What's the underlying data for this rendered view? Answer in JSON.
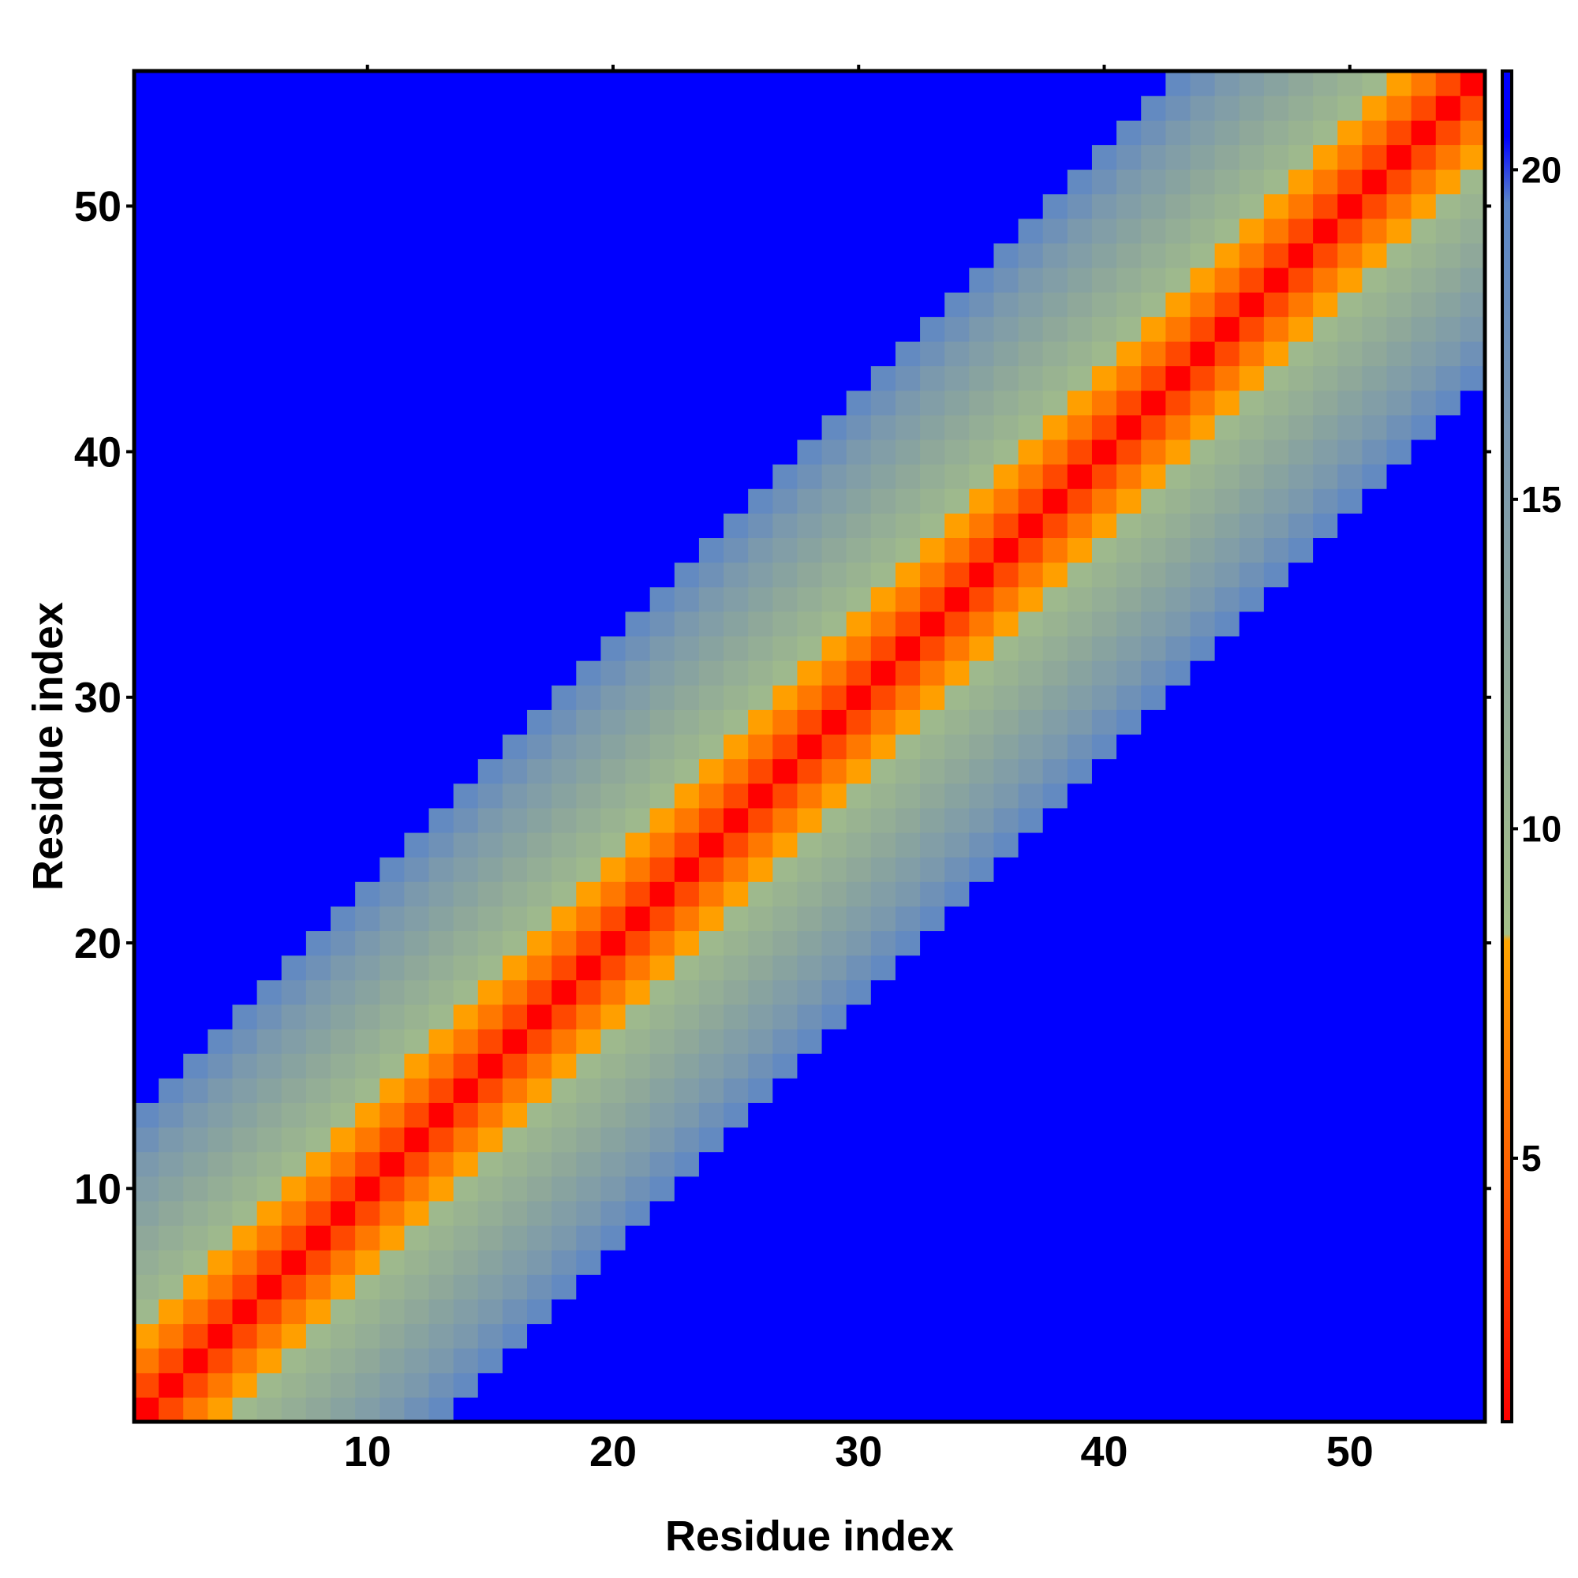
{
  "chart_data": {
    "type": "heatmap",
    "title": "",
    "xlabel": "Residue index",
    "ylabel": "Residue index",
    "n_residues": 55,
    "xlim": [
      0.5,
      55.5
    ],
    "ylim": [
      0.5,
      55.5
    ],
    "x_ticks": [
      10,
      20,
      30,
      40,
      50
    ],
    "y_ticks": [
      10,
      20,
      30,
      40,
      50
    ],
    "colorbar": {
      "range": [
        1,
        21.5
      ],
      "ticks": [
        5,
        10,
        15,
        20
      ],
      "stops": [
        {
          "value": 1,
          "color": "#ff0000"
        },
        {
          "value": 4.5,
          "color": "#ff5a00"
        },
        {
          "value": 8.3,
          "color": "#ffa500"
        },
        {
          "value": 8.4,
          "color": "#a3bf88"
        },
        {
          "value": 12.5,
          "color": "#8fa89a"
        },
        {
          "value": 16,
          "color": "#7896b0"
        },
        {
          "value": 19.5,
          "color": "#5a85c8"
        },
        {
          "value": 20.5,
          "color": "#0000ff"
        }
      ]
    },
    "description": "Residue-residue distance map; values grow with sequence separation |i-j| (≈3.8 per residue step), saturating at the cutoff colour (blue) beyond ~13 residues",
    "value_per_separation": [
      1,
      3.8,
      6.0,
      8.0,
      9.5,
      10.5,
      11.5,
      12.5,
      13.5,
      14.5,
      15.5,
      17.0,
      18.5,
      21.5
    ],
    "cutoff_separation": 13,
    "cutoff_value": 21.5
  }
}
